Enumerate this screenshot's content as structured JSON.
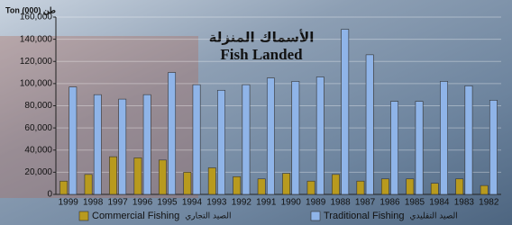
{
  "chart_data": {
    "type": "bar",
    "title_ar": "الأسماك المنزلة",
    "title": "Fish Landed",
    "y_label": "Ton (000) طن",
    "categories": [
      "1999",
      "1998",
      "1997",
      "1996",
      "1995",
      "1994",
      "1993",
      "1992",
      "1991",
      "1990",
      "1989",
      "1988",
      "1987",
      "1986",
      "1985",
      "1984",
      "1983",
      "1982"
    ],
    "series": [
      {
        "name": "Commercial Fishing",
        "name_ar": "الصيد التجاري",
        "color": "#b89a1e",
        "values": [
          12000,
          18000,
          34000,
          33000,
          31000,
          20000,
          24000,
          16000,
          14000,
          19000,
          12000,
          18000,
          12000,
          14000,
          14000,
          10000,
          14000,
          8000
        ]
      },
      {
        "name": "Traditional Fishing",
        "name_ar": "الصيد التقليدي",
        "color": "#8fb4e8",
        "values": [
          97000,
          90000,
          86000,
          90000,
          110000,
          99000,
          94000,
          99000,
          105000,
          102000,
          106000,
          149000,
          126000,
          84000,
          84000,
          102000,
          98000,
          85000
        ]
      }
    ],
    "ylim": [
      0,
      160000
    ],
    "yticks": [
      0,
      {
        "value": 20000,
        "label": "20,000"
      },
      {
        "value": 40000,
        "label": "40,000"
      },
      {
        "value": 60000,
        "label": "60,000"
      },
      {
        "value": 80000,
        "label": "80,000"
      },
      {
        "value": 100000,
        "label": "100,000"
      },
      {
        "value": 120000,
        "label": "120,000"
      },
      {
        "value": 140000,
        "label": "140,000"
      },
      {
        "value": 160000,
        "label": "160,000"
      }
    ],
    "grid": true
  }
}
